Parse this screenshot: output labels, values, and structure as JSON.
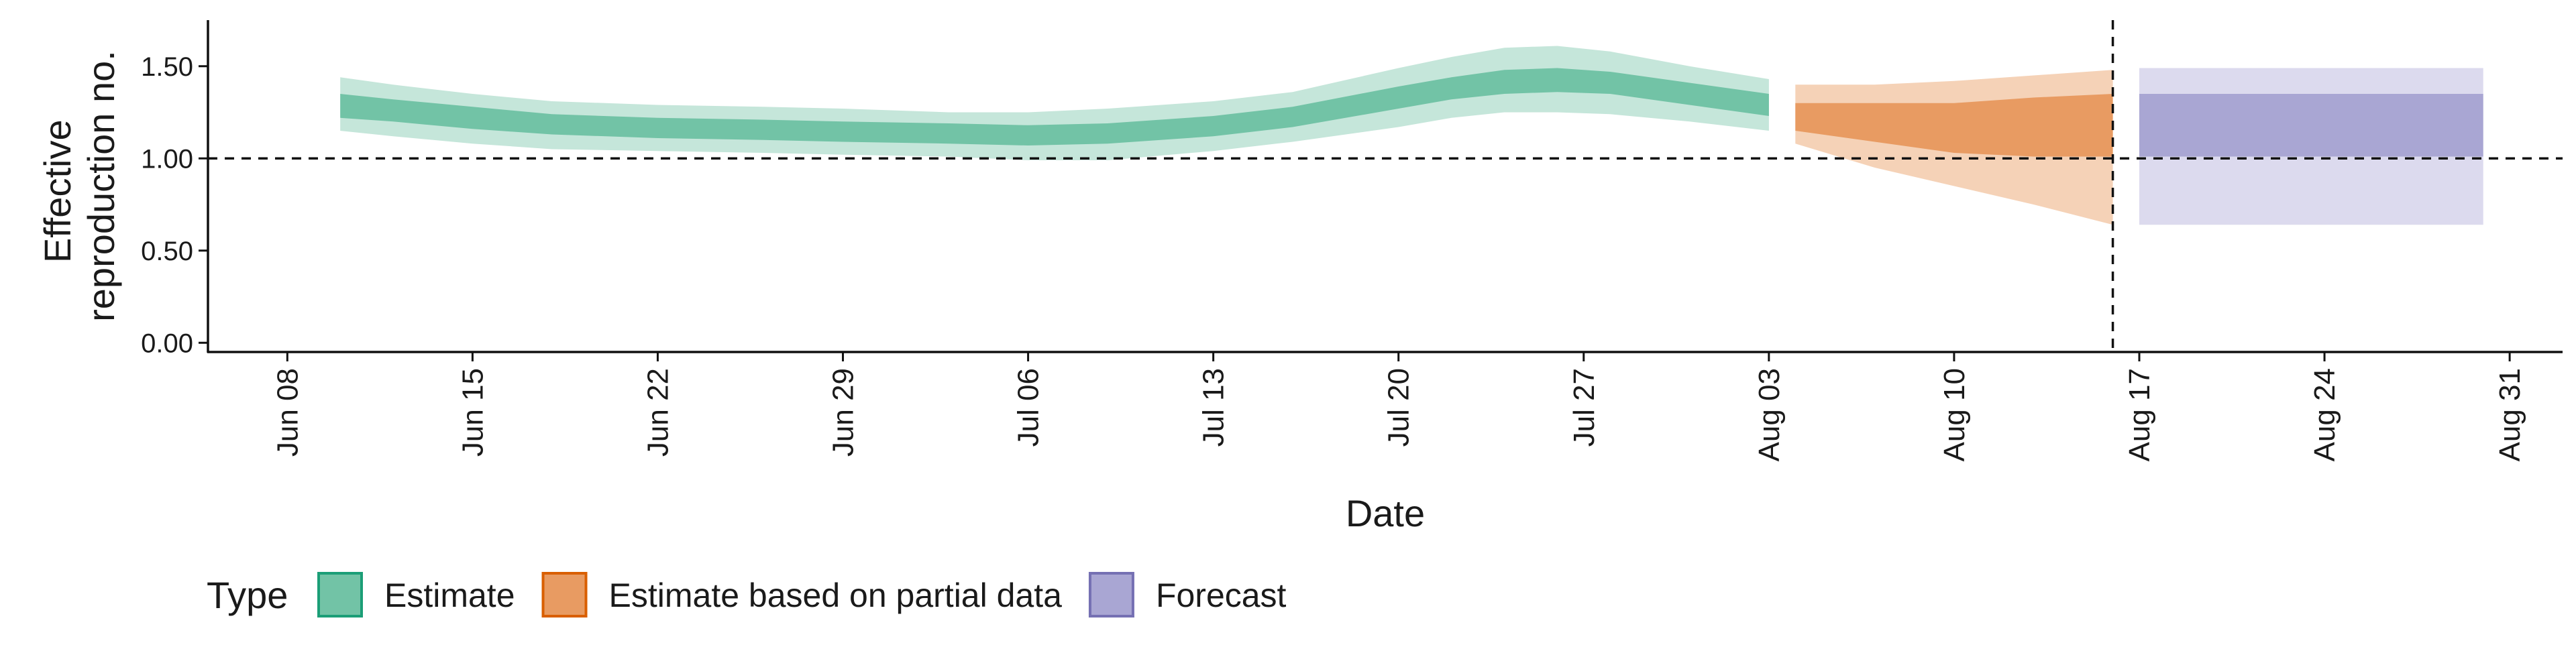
{
  "chart_data": {
    "type": "area",
    "xlabel": "Date",
    "ylabel_lines": [
      "Effective",
      "reproduction no."
    ],
    "ylim": [
      -0.05,
      1.75
    ],
    "y_ticks": [
      {
        "value": 0.0,
        "label": "0.00"
      },
      {
        "value": 0.5,
        "label": "0.50"
      },
      {
        "value": 1.0,
        "label": "1.00"
      },
      {
        "value": 1.5,
        "label": "1.50"
      }
    ],
    "x_range": [
      "2020-06-05",
      "2020-09-02"
    ],
    "x_ticks": [
      {
        "date": "2020-06-08",
        "label": "Jun 08"
      },
      {
        "date": "2020-06-15",
        "label": "Jun 15"
      },
      {
        "date": "2020-06-22",
        "label": "Jun 22"
      },
      {
        "date": "2020-06-29",
        "label": "Jun 29"
      },
      {
        "date": "2020-07-06",
        "label": "Jul 06"
      },
      {
        "date": "2020-07-13",
        "label": "Jul 13"
      },
      {
        "date": "2020-07-20",
        "label": "Jul 20"
      },
      {
        "date": "2020-07-27",
        "label": "Jul 27"
      },
      {
        "date": "2020-08-03",
        "label": "Aug 03"
      },
      {
        "date": "2020-08-10",
        "label": "Aug 10"
      },
      {
        "date": "2020-08-17",
        "label": "Aug 17"
      },
      {
        "date": "2020-08-24",
        "label": "Aug 24"
      },
      {
        "date": "2020-08-31",
        "label": "Aug 31"
      }
    ],
    "hline": 1.0,
    "vline_date": "2020-08-16",
    "legend": {
      "title": "Type",
      "position": "bottom-left",
      "items": [
        {
          "label": "Estimate",
          "fill": "#72c3a6",
          "border": "#1b9e77"
        },
        {
          "label": "Estimate based on partial data",
          "fill": "#e89b62",
          "border": "#d95f02"
        },
        {
          "label": "Forecast",
          "fill": "#a9a6d3",
          "border": "#7570b3"
        }
      ]
    },
    "series": [
      {
        "name": "Estimate",
        "inner_color": "#72c3a6",
        "outer_color": "#c5e6da",
        "points": [
          {
            "x": "2020-06-10",
            "lo90": 1.15,
            "lo50": 1.22,
            "hi50": 1.35,
            "hi90": 1.44
          },
          {
            "x": "2020-06-12",
            "lo90": 1.12,
            "lo50": 1.2,
            "hi50": 1.32,
            "hi90": 1.4
          },
          {
            "x": "2020-06-15",
            "lo90": 1.08,
            "lo50": 1.16,
            "hi50": 1.28,
            "hi90": 1.35
          },
          {
            "x": "2020-06-18",
            "lo90": 1.05,
            "lo50": 1.13,
            "hi50": 1.24,
            "hi90": 1.31
          },
          {
            "x": "2020-06-22",
            "lo90": 1.04,
            "lo50": 1.11,
            "hi50": 1.22,
            "hi90": 1.29
          },
          {
            "x": "2020-06-26",
            "lo90": 1.03,
            "lo50": 1.1,
            "hi50": 1.21,
            "hi90": 1.28
          },
          {
            "x": "2020-06-29",
            "lo90": 1.02,
            "lo50": 1.09,
            "hi50": 1.2,
            "hi90": 1.27
          },
          {
            "x": "2020-07-03",
            "lo90": 1.01,
            "lo50": 1.08,
            "hi50": 1.19,
            "hi90": 1.25
          },
          {
            "x": "2020-07-06",
            "lo90": 0.99,
            "lo50": 1.07,
            "hi50": 1.18,
            "hi90": 1.25
          },
          {
            "x": "2020-07-09",
            "lo90": 0.99,
            "lo50": 1.08,
            "hi50": 1.19,
            "hi90": 1.27
          },
          {
            "x": "2020-07-13",
            "lo90": 1.04,
            "lo50": 1.12,
            "hi50": 1.23,
            "hi90": 1.31
          },
          {
            "x": "2020-07-16",
            "lo90": 1.09,
            "lo50": 1.17,
            "hi50": 1.28,
            "hi90": 1.36
          },
          {
            "x": "2020-07-20",
            "lo90": 1.17,
            "lo50": 1.27,
            "hi50": 1.39,
            "hi90": 1.49
          },
          {
            "x": "2020-07-22",
            "lo90": 1.22,
            "lo50": 1.32,
            "hi50": 1.44,
            "hi90": 1.55
          },
          {
            "x": "2020-07-24",
            "lo90": 1.25,
            "lo50": 1.35,
            "hi50": 1.48,
            "hi90": 1.6
          },
          {
            "x": "2020-07-26",
            "lo90": 1.25,
            "lo50": 1.36,
            "hi50": 1.49,
            "hi90": 1.61
          },
          {
            "x": "2020-07-28",
            "lo90": 1.24,
            "lo50": 1.35,
            "hi50": 1.47,
            "hi90": 1.58
          },
          {
            "x": "2020-07-31",
            "lo90": 1.2,
            "lo50": 1.29,
            "hi50": 1.41,
            "hi90": 1.5
          },
          {
            "x": "2020-08-03",
            "lo90": 1.15,
            "lo50": 1.23,
            "hi50": 1.35,
            "hi90": 1.43
          }
        ]
      },
      {
        "name": "Estimate based on partial data",
        "inner_color": "#e89b62",
        "outer_color": "#f5d2b7",
        "points": [
          {
            "x": "2020-08-04",
            "lo90": 1.08,
            "lo50": 1.15,
            "hi50": 1.3,
            "hi90": 1.4
          },
          {
            "x": "2020-08-07",
            "lo90": 0.95,
            "lo50": 1.09,
            "hi50": 1.3,
            "hi90": 1.4
          },
          {
            "x": "2020-08-10",
            "lo90": 0.85,
            "lo50": 1.03,
            "hi50": 1.3,
            "hi90": 1.42
          },
          {
            "x": "2020-08-13",
            "lo90": 0.75,
            "lo50": 1.01,
            "hi50": 1.33,
            "hi90": 1.45
          },
          {
            "x": "2020-08-16",
            "lo90": 0.64,
            "lo50": 1.01,
            "hi50": 1.35,
            "hi90": 1.48
          }
        ]
      },
      {
        "name": "Forecast",
        "inner_color": "#a9a6d3",
        "outer_color": "#dcdaee",
        "points": [
          {
            "x": "2020-08-17",
            "lo90": 0.64,
            "lo50": 1.01,
            "hi50": 1.35,
            "hi90": 1.49
          },
          {
            "x": "2020-08-30",
            "lo90": 0.64,
            "lo50": 1.01,
            "hi50": 1.35,
            "hi90": 1.49
          }
        ]
      }
    ]
  }
}
